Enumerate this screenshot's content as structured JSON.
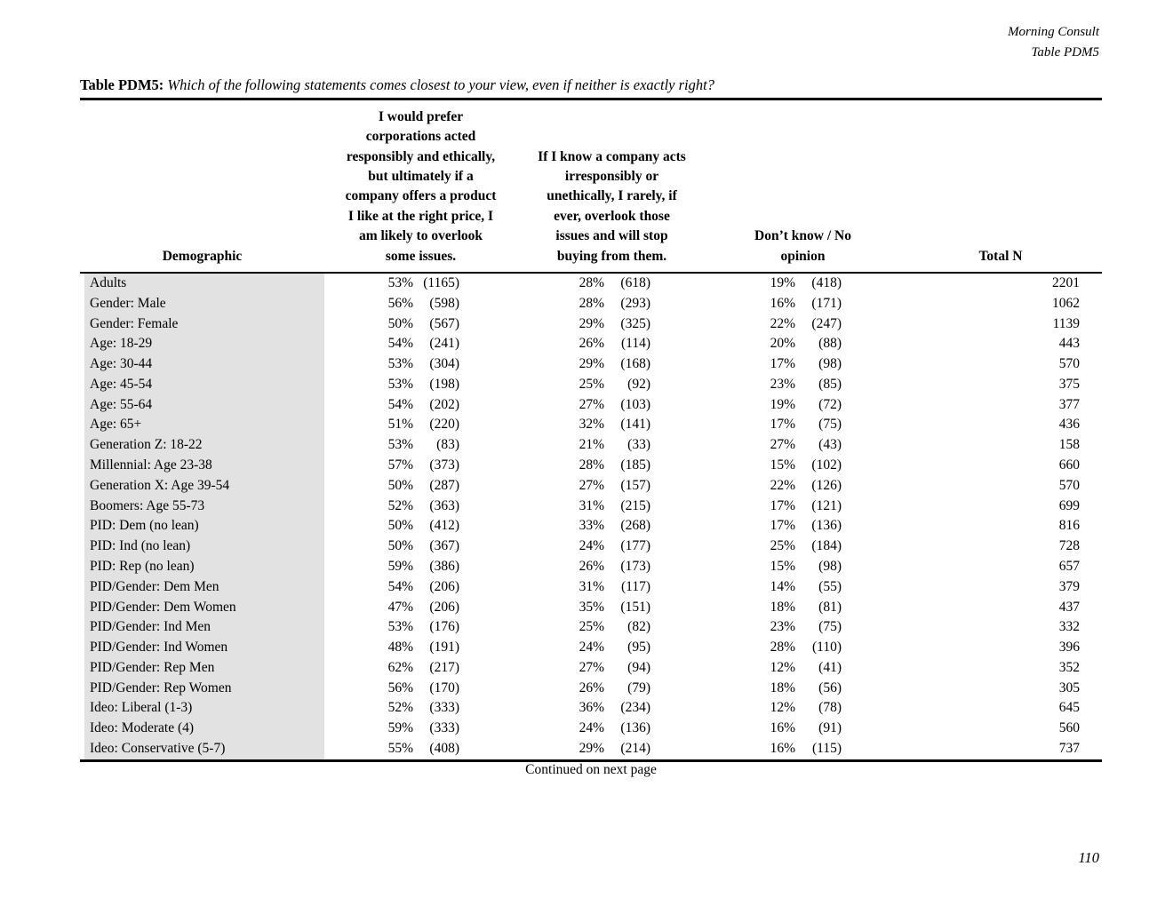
{
  "page": {
    "header_right": [
      "Morning Consult",
      "Table PDM5"
    ],
    "title_label": "Table PDM5:",
    "title_question": "Which of the following statements comes closest to your view, even if neither is exactly right?",
    "footer_note": "Continued on next page",
    "page_number": "110"
  },
  "colors": {
    "demographic_shade": "#e2e2e2",
    "rule": "#000000",
    "text": "#000000"
  },
  "table": {
    "columns": {
      "demographic": "Demographic",
      "col1": "I would prefer\ncorporations acted\nresponsibly and ethically,\nbut ultimately if a\ncompany offers a product\nI like at the right price, I\nam likely to overlook\nsome issues.",
      "col2": "If I know a company acts\nirresponsibly or\nunethically, I rarely, if\never, overlook those\nissues and will stop\nbuying from them.",
      "col3": "Don’t know / No\nopinion",
      "total": "Total N"
    },
    "rows": [
      {
        "demographic": "Adults",
        "c1_pct": "53%",
        "c1_n": "(1165)",
        "c2_pct": "28%",
        "c2_n": "(618)",
        "c3_pct": "19%",
        "c3_n": "(418)",
        "total": "2201"
      },
      {
        "demographic": "Gender: Male",
        "c1_pct": "56%",
        "c1_n": "(598)",
        "c2_pct": "28%",
        "c2_n": "(293)",
        "c3_pct": "16%",
        "c3_n": "(171)",
        "total": "1062"
      },
      {
        "demographic": "Gender: Female",
        "c1_pct": "50%",
        "c1_n": "(567)",
        "c2_pct": "29%",
        "c2_n": "(325)",
        "c3_pct": "22%",
        "c3_n": "(247)",
        "total": "1139"
      },
      {
        "demographic": "Age: 18-29",
        "c1_pct": "54%",
        "c1_n": "(241)",
        "c2_pct": "26%",
        "c2_n": "(114)",
        "c3_pct": "20%",
        "c3_n": "(88)",
        "total": "443"
      },
      {
        "demographic": "Age: 30-44",
        "c1_pct": "53%",
        "c1_n": "(304)",
        "c2_pct": "29%",
        "c2_n": "(168)",
        "c3_pct": "17%",
        "c3_n": "(98)",
        "total": "570"
      },
      {
        "demographic": "Age: 45-54",
        "c1_pct": "53%",
        "c1_n": "(198)",
        "c2_pct": "25%",
        "c2_n": "(92)",
        "c3_pct": "23%",
        "c3_n": "(85)",
        "total": "375"
      },
      {
        "demographic": "Age: 55-64",
        "c1_pct": "54%",
        "c1_n": "(202)",
        "c2_pct": "27%",
        "c2_n": "(103)",
        "c3_pct": "19%",
        "c3_n": "(72)",
        "total": "377"
      },
      {
        "demographic": "Age: 65+",
        "c1_pct": "51%",
        "c1_n": "(220)",
        "c2_pct": "32%",
        "c2_n": "(141)",
        "c3_pct": "17%",
        "c3_n": "(75)",
        "total": "436"
      },
      {
        "demographic": "Generation Z: 18-22",
        "c1_pct": "53%",
        "c1_n": "(83)",
        "c2_pct": "21%",
        "c2_n": "(33)",
        "c3_pct": "27%",
        "c3_n": "(43)",
        "total": "158"
      },
      {
        "demographic": "Millennial: Age 23-38",
        "c1_pct": "57%",
        "c1_n": "(373)",
        "c2_pct": "28%",
        "c2_n": "(185)",
        "c3_pct": "15%",
        "c3_n": "(102)",
        "total": "660"
      },
      {
        "demographic": "Generation X: Age 39-54",
        "c1_pct": "50%",
        "c1_n": "(287)",
        "c2_pct": "27%",
        "c2_n": "(157)",
        "c3_pct": "22%",
        "c3_n": "(126)",
        "total": "570"
      },
      {
        "demographic": "Boomers: Age 55-73",
        "c1_pct": "52%",
        "c1_n": "(363)",
        "c2_pct": "31%",
        "c2_n": "(215)",
        "c3_pct": "17%",
        "c3_n": "(121)",
        "total": "699"
      },
      {
        "demographic": "PID: Dem (no lean)",
        "c1_pct": "50%",
        "c1_n": "(412)",
        "c2_pct": "33%",
        "c2_n": "(268)",
        "c3_pct": "17%",
        "c3_n": "(136)",
        "total": "816"
      },
      {
        "demographic": "PID: Ind (no lean)",
        "c1_pct": "50%",
        "c1_n": "(367)",
        "c2_pct": "24%",
        "c2_n": "(177)",
        "c3_pct": "25%",
        "c3_n": "(184)",
        "total": "728"
      },
      {
        "demographic": "PID: Rep (no lean)",
        "c1_pct": "59%",
        "c1_n": "(386)",
        "c2_pct": "26%",
        "c2_n": "(173)",
        "c3_pct": "15%",
        "c3_n": "(98)",
        "total": "657"
      },
      {
        "demographic": "PID/Gender: Dem Men",
        "c1_pct": "54%",
        "c1_n": "(206)",
        "c2_pct": "31%",
        "c2_n": "(117)",
        "c3_pct": "14%",
        "c3_n": "(55)",
        "total": "379"
      },
      {
        "demographic": "PID/Gender: Dem Women",
        "c1_pct": "47%",
        "c1_n": "(206)",
        "c2_pct": "35%",
        "c2_n": "(151)",
        "c3_pct": "18%",
        "c3_n": "(81)",
        "total": "437"
      },
      {
        "demographic": "PID/Gender: Ind Men",
        "c1_pct": "53%",
        "c1_n": "(176)",
        "c2_pct": "25%",
        "c2_n": "(82)",
        "c3_pct": "23%",
        "c3_n": "(75)",
        "total": "332"
      },
      {
        "demographic": "PID/Gender: Ind Women",
        "c1_pct": "48%",
        "c1_n": "(191)",
        "c2_pct": "24%",
        "c2_n": "(95)",
        "c3_pct": "28%",
        "c3_n": "(110)",
        "total": "396"
      },
      {
        "demographic": "PID/Gender: Rep Men",
        "c1_pct": "62%",
        "c1_n": "(217)",
        "c2_pct": "27%",
        "c2_n": "(94)",
        "c3_pct": "12%",
        "c3_n": "(41)",
        "total": "352"
      },
      {
        "demographic": "PID/Gender: Rep Women",
        "c1_pct": "56%",
        "c1_n": "(170)",
        "c2_pct": "26%",
        "c2_n": "(79)",
        "c3_pct": "18%",
        "c3_n": "(56)",
        "total": "305"
      },
      {
        "demographic": "Ideo: Liberal (1-3)",
        "c1_pct": "52%",
        "c1_n": "(333)",
        "c2_pct": "36%",
        "c2_n": "(234)",
        "c3_pct": "12%",
        "c3_n": "(78)",
        "total": "645"
      },
      {
        "demographic": "Ideo: Moderate (4)",
        "c1_pct": "59%",
        "c1_n": "(333)",
        "c2_pct": "24%",
        "c2_n": "(136)",
        "c3_pct": "16%",
        "c3_n": "(91)",
        "total": "560"
      },
      {
        "demographic": "Ideo: Conservative (5-7)",
        "c1_pct": "55%",
        "c1_n": "(408)",
        "c2_pct": "29%",
        "c2_n": "(214)",
        "c3_pct": "16%",
        "c3_n": "(115)",
        "total": "737"
      }
    ]
  }
}
